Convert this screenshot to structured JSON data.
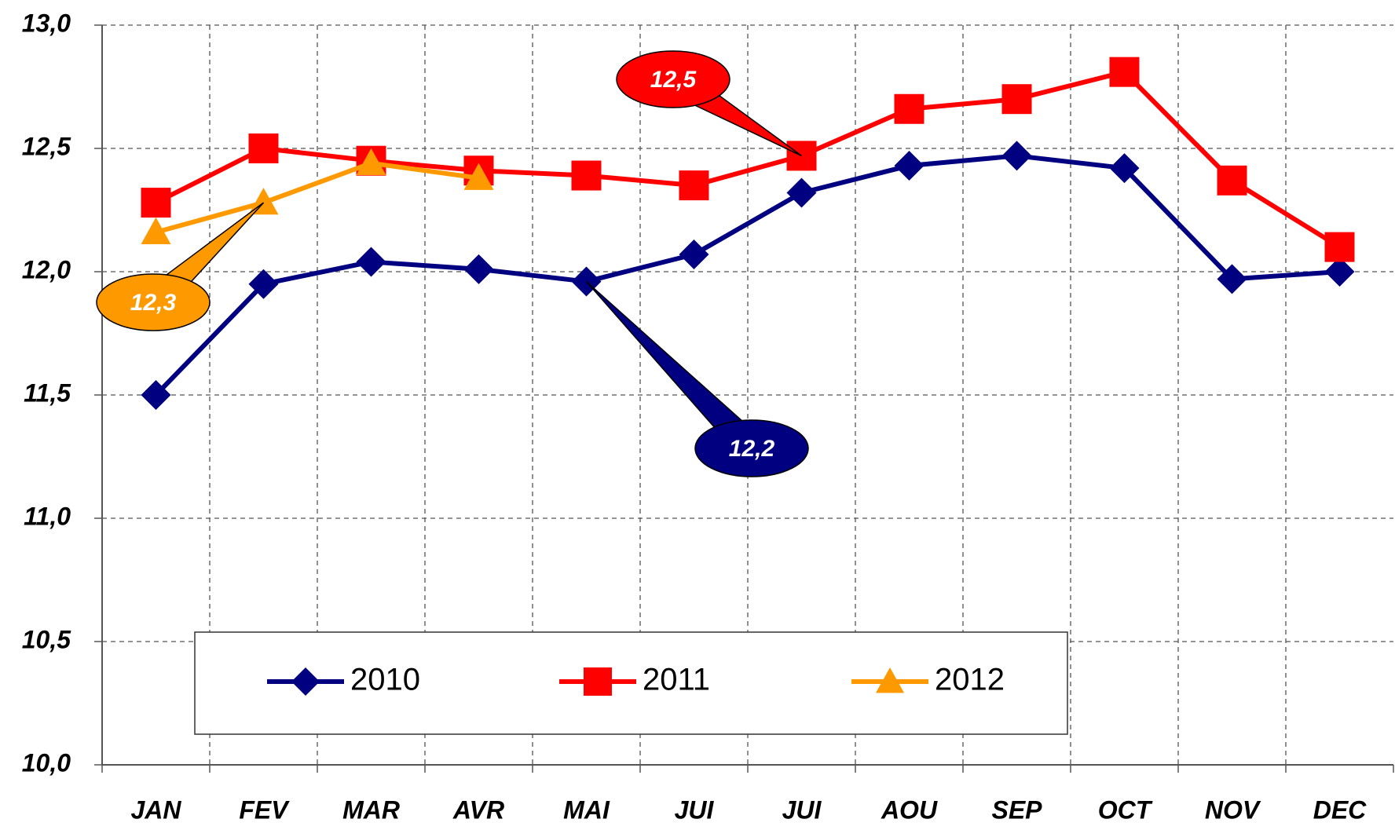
{
  "chart_data": {
    "type": "line",
    "categories": [
      "JAN",
      "FEV",
      "MAR",
      "AVR",
      "MAI",
      "JUI",
      "JUI",
      "AOU",
      "SEP",
      "OCT",
      "NOV",
      "DEC"
    ],
    "series": [
      {
        "name": "2010",
        "color": "#000080",
        "marker": "diamond",
        "values": [
          11.5,
          11.95,
          12.04,
          12.01,
          11.96,
          12.07,
          12.32,
          12.43,
          12.47,
          12.42,
          11.97,
          12.0
        ]
      },
      {
        "name": "2011",
        "color": "#ff0000",
        "marker": "square",
        "values": [
          12.28,
          12.5,
          12.45,
          12.41,
          12.39,
          12.35,
          12.47,
          12.66,
          12.7,
          12.81,
          12.37,
          12.1
        ]
      },
      {
        "name": "2012",
        "color": "#ff9900",
        "marker": "triangle",
        "values": [
          12.16,
          12.28,
          12.44,
          12.38,
          null,
          null,
          null,
          null,
          null,
          null,
          null,
          null
        ]
      }
    ],
    "ylim": [
      10.0,
      13.0
    ],
    "yticks": [
      {
        "value": 10.0,
        "label": "10,0"
      },
      {
        "value": 10.5,
        "label": "10,5"
      },
      {
        "value": 11.0,
        "label": "11,0"
      },
      {
        "value": 11.5,
        "label": "11,5"
      },
      {
        "value": 12.0,
        "label": "12,0"
      },
      {
        "value": 12.5,
        "label": "12,5"
      },
      {
        "value": 13.0,
        "label": "13,0"
      }
    ],
    "grid": true,
    "annotations": [
      {
        "text": "12,5",
        "color": "#ff0000"
      },
      {
        "text": "12,3",
        "color": "#ff9900"
      },
      {
        "text": "12,2",
        "color": "#000080"
      }
    ]
  }
}
